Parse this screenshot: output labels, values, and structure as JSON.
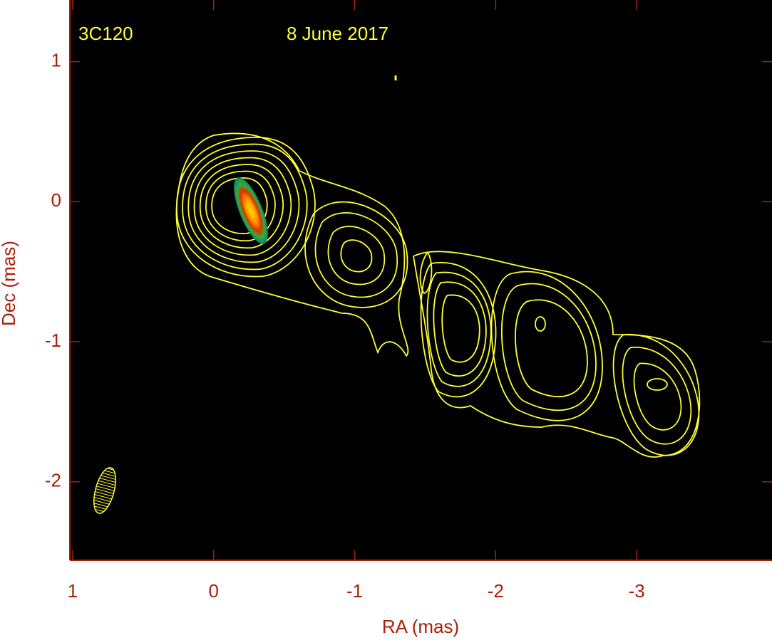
{
  "chart_data": {
    "type": "contour",
    "title": "3C120",
    "annotation": "8 June 2017",
    "x_label": "RA (mas)",
    "y_label": "Dec (mas)",
    "xlim": [
      1.02,
      -3.96
    ],
    "ylim": [
      -2.56,
      1.44
    ],
    "xticks": [
      1,
      0,
      -1,
      -2,
      -3
    ],
    "yticks": [
      1,
      0,
      -1,
      -2
    ],
    "color": "#ffff33",
    "axis_color": "#a8200a"
  }
}
